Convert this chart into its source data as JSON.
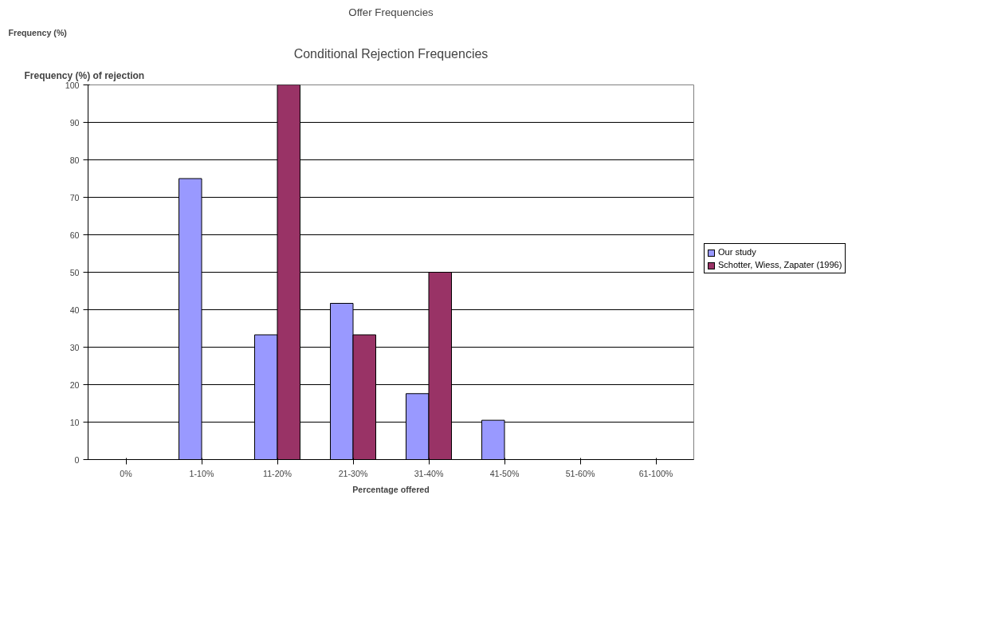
{
  "chart_data": {
    "type": "bar",
    "title": "Conditional Rejection Frequencies",
    "ylabel": "Frequency (%) of rejection",
    "xlabel": "Percentage offered",
    "annotations": [
      "Offer Frequencies",
      "Frequency (%)"
    ],
    "categories": [
      "0%",
      "1-10%",
      "11-20%",
      "21-30%",
      "31-40%",
      "41-50%",
      "51-60%",
      "61-100%"
    ],
    "series": [
      {
        "name": "Our study",
        "color": "#9999ff",
        "values": [
          0,
          75,
          33.3,
          41.7,
          17.6,
          10.5,
          0,
          0
        ]
      },
      {
        "name": "Schotter, Wiess, Zapater (1996)",
        "color": "#993366",
        "values": [
          0,
          0,
          100,
          33.3,
          50,
          0,
          0,
          0
        ]
      }
    ],
    "ylim": [
      0,
      100
    ],
    "yticks": [
      0,
      10,
      20,
      30,
      40,
      50,
      60,
      70,
      80,
      90,
      100
    ],
    "grid": "y",
    "legend": "right"
  }
}
